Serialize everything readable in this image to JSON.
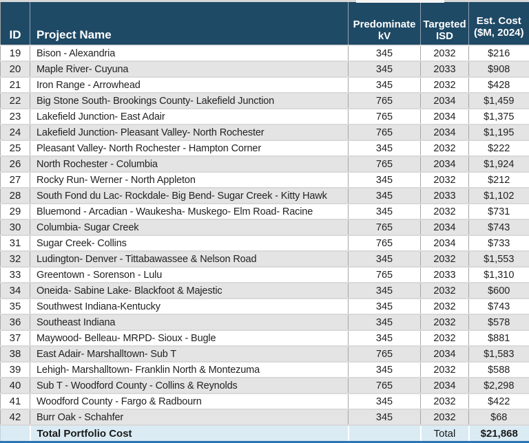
{
  "colors": {
    "header_bg": "#1f4a66",
    "row_alt": "#e4e4e5",
    "total_bg": "#daebf4",
    "bottom_border": "#2e74b0",
    "grid_line": "#a6a6a6"
  },
  "table": {
    "columns": [
      {
        "key": "id",
        "label": "ID"
      },
      {
        "key": "name",
        "label": "Project Name"
      },
      {
        "key": "kv",
        "label": "Predominate\nkV"
      },
      {
        "key": "isd",
        "label": "Targeted\nISD"
      },
      {
        "key": "cost",
        "label": "Est. Cost\n($M, 2024)"
      }
    ],
    "rows": [
      {
        "id": "19",
        "name": "Bison - Alexandria",
        "kv": "345",
        "isd": "2032",
        "cost": "$216"
      },
      {
        "id": "20",
        "name": "Maple River- Cuyuna",
        "kv": "345",
        "isd": "2033",
        "cost": "$908"
      },
      {
        "id": "21",
        "name": "Iron Range - Arrowhead",
        "kv": "345",
        "isd": "2032",
        "cost": "$428"
      },
      {
        "id": "22",
        "name": "Big Stone South- Brookings County- Lakefield Junction",
        "kv": "765",
        "isd": "2034",
        "cost": "$1,459"
      },
      {
        "id": "23",
        "name": "Lakefield Junction- East Adair",
        "kv": "765",
        "isd": "2034",
        "cost": "$1,375"
      },
      {
        "id": "24",
        "name": "Lakefield Junction- Pleasant Valley- North Rochester",
        "kv": "765",
        "isd": "2034",
        "cost": "$1,195"
      },
      {
        "id": "25",
        "name": "Pleasant Valley- North Rochester - Hampton Corner",
        "kv": "345",
        "isd": "2032",
        "cost": "$222"
      },
      {
        "id": "26",
        "name": "North Rochester - Columbia",
        "kv": "765",
        "isd": "2034",
        "cost": "$1,924"
      },
      {
        "id": "27",
        "name": "Rocky Run- Werner - North Appleton",
        "kv": "345",
        "isd": "2032",
        "cost": "$212"
      },
      {
        "id": "28",
        "name": "South Fond du Lac- Rockdale- Big Bend- Sugar Creek - Kitty Hawk",
        "kv": "345",
        "isd": "2033",
        "cost": "$1,102"
      },
      {
        "id": "29",
        "name": "Bluemond - Arcadian - Waukesha- Muskego- Elm Road- Racine",
        "kv": "345",
        "isd": "2032",
        "cost": "$731"
      },
      {
        "id": "30",
        "name": "Columbia- Sugar Creek",
        "kv": "765",
        "isd": "2034",
        "cost": "$743"
      },
      {
        "id": "31",
        "name": "Sugar Creek- Collins",
        "kv": "765",
        "isd": "2034",
        "cost": "$733"
      },
      {
        "id": "32",
        "name": "Ludington- Denver - Tittabawassee & Nelson Road",
        "kv": "345",
        "isd": "2032",
        "cost": "$1,553"
      },
      {
        "id": "33",
        "name": "Greentown - Sorenson - Lulu",
        "kv": "765",
        "isd": "2033",
        "cost": "$1,310"
      },
      {
        "id": "34",
        "name": "Oneida- Sabine Lake- Blackfoot & Majestic",
        "kv": "345",
        "isd": "2032",
        "cost": "$600"
      },
      {
        "id": "35",
        "name": "Southwest Indiana-Kentucky",
        "kv": "345",
        "isd": "2032",
        "cost": "$743"
      },
      {
        "id": "36",
        "name": "Southeast Indiana",
        "kv": "345",
        "isd": "2032",
        "cost": "$578"
      },
      {
        "id": "37",
        "name": "Maywood- Belleau- MRPD- Sioux - Bugle",
        "kv": "345",
        "isd": "2032",
        "cost": "$881"
      },
      {
        "id": "38",
        "name": "East Adair- Marshalltown- Sub T",
        "kv": "765",
        "isd": "2034",
        "cost": "$1,583"
      },
      {
        "id": "39",
        "name": "Lehigh- Marshalltown- Franklin North & Montezuma",
        "kv": "345",
        "isd": "2032",
        "cost": "$588"
      },
      {
        "id": "40",
        "name": "Sub T - Woodford County -  Collins & Reynolds",
        "kv": "765",
        "isd": "2034",
        "cost": "$2,298"
      },
      {
        "id": "41",
        "name": "Woodford County - Fargo & Radbourn",
        "kv": "345",
        "isd": "2032",
        "cost": "$422"
      },
      {
        "id": "42",
        "name": "Burr Oak - Schahfer",
        "kv": "345",
        "isd": "2032",
        "cost": "$68"
      }
    ],
    "total": {
      "label": "Total Portfolio Cost",
      "isd_label": "Total",
      "value": "$21,868"
    }
  }
}
